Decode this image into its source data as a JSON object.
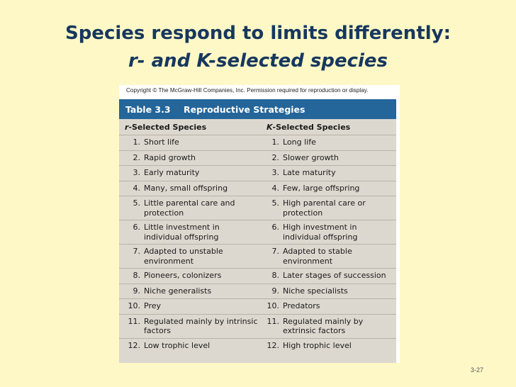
{
  "slide": {
    "title_line1": "Species respond to limits differently:",
    "title_line2": "r- and K-selected species",
    "page_number": "3-27"
  },
  "figure": {
    "copyright": "Copyright © The McGraw-Hill Companies, Inc. Permission required for reproduction or display.",
    "table_number": "Table 3.3",
    "table_title": "Reproductive Strategies",
    "col_r_prefix": "r",
    "col_r_suffix": "-Selected Species",
    "col_k_prefix": "K",
    "col_k_suffix": "-Selected Species",
    "rows": [
      {
        "n": "1.",
        "r": "Short life",
        "k": "Long life"
      },
      {
        "n": "2.",
        "r": "Rapid growth",
        "k": "Slower growth"
      },
      {
        "n": "3.",
        "r": "Early maturity",
        "k": "Late maturity"
      },
      {
        "n": "4.",
        "r": "Many, small offspring",
        "k": "Few, large offspring"
      },
      {
        "n": "5.",
        "r": "Little parental care and\nprotection",
        "k": "High parental care or\nprotection"
      },
      {
        "n": "6.",
        "r": "Little investment in\nindividual offspring",
        "k": "High investment in\nindividual offspring"
      },
      {
        "n": "7.",
        "r": "Adapted to unstable\nenvironment",
        "k": "Adapted to stable\nenvironment"
      },
      {
        "n": "8.",
        "r": "Pioneers, colonizers",
        "k": "Later stages of succession"
      },
      {
        "n": "9.",
        "r": "Niche generalists",
        "k": "Niche specialists"
      },
      {
        "n": "10.",
        "r": "Prey",
        "k": "Predators"
      },
      {
        "n": "11.",
        "r": "Regulated mainly by intrinsic\nfactors",
        "k": "Regulated mainly by\nextrinsic factors"
      },
      {
        "n": "12.",
        "r": "Low trophic level",
        "k": "High trophic level"
      }
    ]
  }
}
